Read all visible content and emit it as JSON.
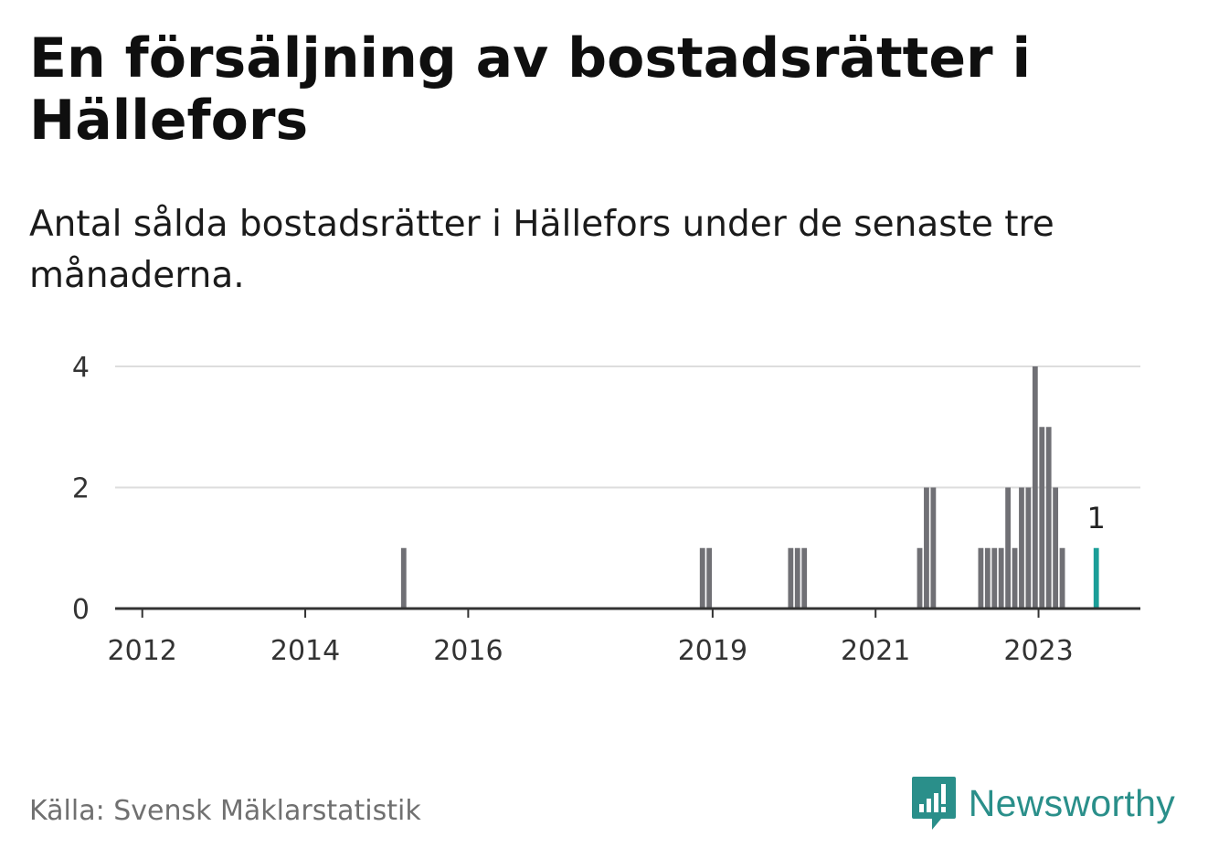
{
  "header": {
    "title": "En försäljning av bostadsrätter i Hällefors",
    "subtitle": "Antal sålda bostadsrätter i Hällefors under de senaste tre månaderna."
  },
  "footer": {
    "source": "Källa: Svensk Mäklarstatistik",
    "brand": "Newsworthy"
  },
  "colors": {
    "bar": "#707075",
    "highlight": "#1a9e98",
    "grid": "#dddddd",
    "axis": "#333333",
    "brand": "#2a8f8a"
  },
  "chart_data": {
    "type": "bar",
    "xlim": [
      "2011-09",
      "2024-04"
    ],
    "ylim": [
      0,
      4
    ],
    "yticks": [
      0,
      2,
      4
    ],
    "xticks": [
      {
        "month": "2012-01",
        "label": "2012"
      },
      {
        "month": "2014-01",
        "label": "2014"
      },
      {
        "month": "2016-01",
        "label": "2016"
      },
      {
        "month": "2019-01",
        "label": "2019"
      },
      {
        "month": "2021-01",
        "label": "2021"
      },
      {
        "month": "2023-01",
        "label": "2023"
      }
    ],
    "grid": "horizontal",
    "bars": [
      {
        "month": "2015-03",
        "value": 1
      },
      {
        "month": "2018-11",
        "value": 1
      },
      {
        "month": "2018-12",
        "value": 1
      },
      {
        "month": "2019-12",
        "value": 1
      },
      {
        "month": "2020-01",
        "value": 1
      },
      {
        "month": "2020-02",
        "value": 1
      },
      {
        "month": "2021-07",
        "value": 1
      },
      {
        "month": "2021-08",
        "value": 2
      },
      {
        "month": "2021-09",
        "value": 2
      },
      {
        "month": "2022-04",
        "value": 1
      },
      {
        "month": "2022-05",
        "value": 1
      },
      {
        "month": "2022-06",
        "value": 1
      },
      {
        "month": "2022-07",
        "value": 1
      },
      {
        "month": "2022-08",
        "value": 2
      },
      {
        "month": "2022-09",
        "value": 1
      },
      {
        "month": "2022-10",
        "value": 2
      },
      {
        "month": "2022-11",
        "value": 2
      },
      {
        "month": "2022-12",
        "value": 4
      },
      {
        "month": "2023-01",
        "value": 3
      },
      {
        "month": "2023-02",
        "value": 3
      },
      {
        "month": "2023-03",
        "value": 2
      },
      {
        "month": "2023-04",
        "value": 1
      }
    ],
    "highlight": {
      "month": "2023-09",
      "value": 1,
      "label": "1"
    }
  }
}
